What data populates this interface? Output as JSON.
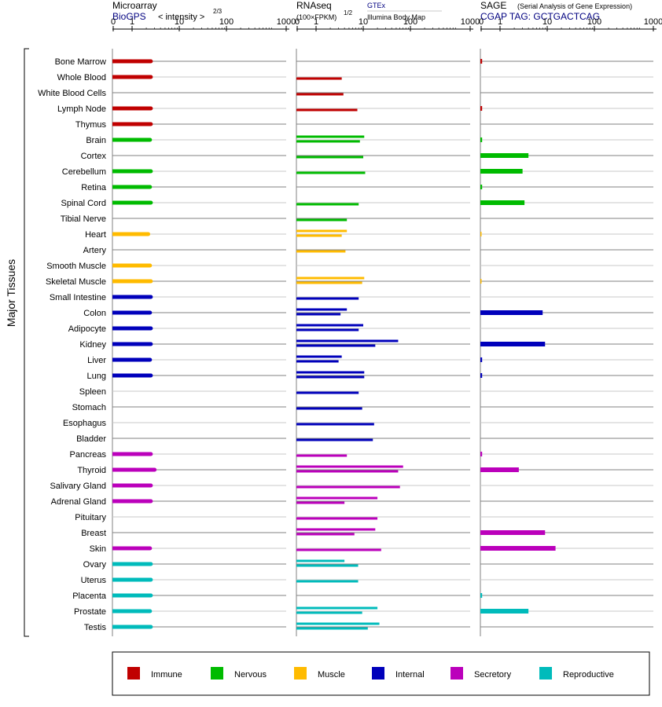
{
  "header": {
    "microarray_title": "Microarray",
    "biogps_label": "BioGPS",
    "intensity_label": "< intensity >",
    "intensity_exp": "2/3",
    "rnaseq_title": "RNAseq",
    "fpkm_label": "(100×FPKM)",
    "fpkm_exp": "1/2",
    "gtex_label": "GTEx",
    "illumina_label": "Illumina Body Map",
    "sage_title": "SAGE",
    "sage_subtitle": "(Serial Analysis of Gene Expression)",
    "cgap_label": "CGAP TAG: GCTGACTCAG"
  },
  "axis_ticks": [
    "0",
    "1",
    "10",
    "100",
    "1000"
  ],
  "y_axis_label": "Major Tissues",
  "colors": {
    "Immune": "#c00000",
    "Nervous": "#00bb00",
    "Muscle": "#ffbb00",
    "Internal": "#0000bb",
    "Secretory": "#bb00bb",
    "Reproductive": "#00bbbb",
    "title_blue": "#000080",
    "grid_dark": "#808080",
    "grid_light": "#c8c8c8"
  },
  "legend": [
    {
      "label": "Immune",
      "color": "#c00000"
    },
    {
      "label": "Nervous",
      "color": "#00bb00"
    },
    {
      "label": "Muscle",
      "color": "#ffbb00"
    },
    {
      "label": "Internal",
      "color": "#0000bb"
    },
    {
      "label": "Secretory",
      "color": "#bb00bb"
    },
    {
      "label": "Reproductive",
      "color": "#00bbbb"
    }
  ],
  "chart_data": {
    "type": "bar",
    "scale": "log (0, 1, 10, 100, 1000)",
    "panels": [
      "Microarray (BioGPS)",
      "RNAseq (GTEx / Illumina Body Map)",
      "SAGE (CGAP)"
    ],
    "categories": [
      "Bone Marrow",
      "Whole Blood",
      "White Blood Cells",
      "Lymph Node",
      "Thymus",
      "Brain",
      "Cortex",
      "Cerebellum",
      "Retina",
      "Spinal Cord",
      "Tibial Nerve",
      "Heart",
      "Artery",
      "Smooth Muscle",
      "Skeletal Muscle",
      "Small Intestine",
      "Colon",
      "Adipocyte",
      "Kidney",
      "Liver",
      "Lung",
      "Spleen",
      "Stomach",
      "Esophagus",
      "Bladder",
      "Pancreas",
      "Thyroid",
      "Salivary Gland",
      "Adrenal Gland",
      "Pituitary",
      "Breast",
      "Skin",
      "Ovary",
      "Uterus",
      "Placenta",
      "Prostate",
      "Testis"
    ],
    "groups": [
      "Immune",
      "Immune",
      "Immune",
      "Immune",
      "Immune",
      "Nervous",
      "Nervous",
      "Nervous",
      "Nervous",
      "Nervous",
      "Nervous",
      "Muscle",
      "Muscle",
      "Muscle",
      "Muscle",
      "Internal",
      "Internal",
      "Internal",
      "Internal",
      "Internal",
      "Internal",
      "Internal",
      "Internal",
      "Internal",
      "Internal",
      "Secretory",
      "Secretory",
      "Secretory",
      "Secretory",
      "Secretory",
      "Secretory",
      "Secretory",
      "Reproductive",
      "Reproductive",
      "Reproductive",
      "Reproductive",
      "Reproductive"
    ],
    "series": [
      {
        "name": "Microarray",
        "values": [
          2.5,
          2.5,
          null,
          2.5,
          2.5,
          2.4,
          null,
          2.5,
          2.4,
          2.5,
          null,
          2.2,
          null,
          2.4,
          2.5,
          2.5,
          2.4,
          2.5,
          2.5,
          2.4,
          2.5,
          null,
          null,
          null,
          null,
          2.5,
          3.0,
          2.5,
          2.5,
          null,
          null,
          2.4,
          2.5,
          2.5,
          2.5,
          2.4,
          2.5
        ]
      },
      {
        "name": "GTEx",
        "values": [
          null,
          3.5,
          null,
          null,
          null,
          10,
          10,
          10,
          null,
          null,
          null,
          null,
          null,
          null,
          10,
          null,
          null,
          10,
          null,
          null,
          10,
          null,
          null,
          null,
          null,
          null,
          null,
          null,
          null,
          null,
          null,
          null,
          null,
          null,
          null,
          null,
          null
        ]
      },
      {
        "name": "Illumina Body Map",
        "values": [
          null,
          null,
          null,
          null,
          null,
          null,
          null,
          null,
          null,
          null,
          null,
          null,
          null,
          null,
          null,
          null,
          null,
          null,
          null,
          null,
          null,
          null,
          null,
          null,
          null,
          null,
          null,
          null,
          null,
          null,
          null,
          null,
          null,
          null,
          null,
          null,
          null
        ]
      },
      {
        "name": "SAGE",
        "values": [
          0.05,
          null,
          null,
          0.05,
          null,
          0.05,
          4.0,
          3.0,
          0.05,
          3.3,
          null,
          0.02,
          null,
          null,
          0.02,
          null,
          8.0,
          null,
          9.0,
          0.05,
          0.05,
          null,
          null,
          null,
          null,
          0.05,
          2.5,
          null,
          null,
          null,
          9.0,
          15,
          null,
          null,
          0.05,
          4.0,
          null
        ]
      }
    ],
    "rnaseq_values": [
      [],
      [
        3.5
      ],
      [
        3.8
      ],
      [
        7.5
      ],
      [],
      [
        10.5,
        8.5
      ],
      [
        10
      ],
      [
        11
      ],
      [],
      [
        8
      ],
      [
        4.5
      ],
      [
        4.5,
        3.5
      ],
      [
        4.2
      ],
      [],
      [
        10.5,
        9.5
      ],
      [
        8
      ],
      [
        4.5,
        3.3
      ],
      [
        10,
        8
      ],
      [
        55,
        18
      ],
      [
        3.5,
        3.0
      ],
      [
        10.5,
        10.5
      ],
      [
        8
      ],
      [
        9.5
      ],
      [
        17
      ],
      [
        16
      ],
      [
        4.5
      ],
      [
        70,
        55
      ],
      [
        60
      ],
      [
        20,
        4.0
      ],
      [
        20
      ],
      [
        18,
        6.5
      ],
      [
        24
      ],
      [
        4.0,
        7.8
      ],
      [
        7.8
      ],
      [],
      [
        20,
        9.5
      ],
      [
        22,
        12.5
      ]
    ]
  }
}
